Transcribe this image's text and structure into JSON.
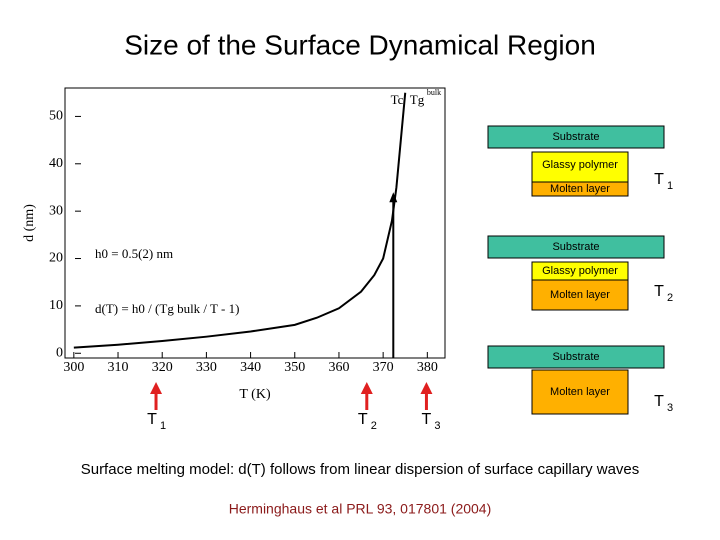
{
  "title": "Size of the Surface Dynamical Region",
  "chart_data": {
    "type": "line",
    "x": [
      300,
      310,
      320,
      330,
      340,
      350,
      355,
      360,
      365,
      368,
      370,
      372,
      373,
      374,
      375
    ],
    "values": [
      1.2,
      1.8,
      2.6,
      3.5,
      4.6,
      6,
      7.5,
      9.5,
      13,
      16.5,
      20,
      28,
      35,
      45,
      55
    ],
    "color": "#000000",
    "xlim": [
      298,
      384
    ],
    "ylim": [
      -1,
      56
    ],
    "xticks": [
      300,
      310,
      320,
      330,
      340,
      350,
      360,
      370,
      380
    ],
    "yticks": [
      0,
      10,
      20,
      30,
      40,
      50
    ],
    "xlabel": "T (K)",
    "ylabel": "d (nm)",
    "annotations": [
      "h0 = 0.5(2) nm",
      "d(T) = h0 / (Tg bulk / T - 1)"
    ],
    "arrow": {
      "x": 372.3,
      "y": 34
    },
    "arrow_labels": [
      "Tc",
      "Tg",
      "bulk"
    ]
  },
  "temperature_markers": [
    {
      "x": 318.6,
      "base": "T",
      "sub": "1"
    },
    {
      "x": 366.3,
      "base": "T",
      "sub": "2"
    },
    {
      "x": 379.8,
      "base": "T",
      "sub": "3"
    }
  ],
  "marker_color": "#e02020",
  "diagrams": [
    {
      "layers": [
        {
          "name": "Substrate",
          "color": "#40bf9f"
        },
        {
          "name": "Glassy polymer",
          "color": "#ffff00"
        },
        {
          "name": "Molten layer",
          "color": "#ffb000"
        }
      ],
      "base": "T",
      "sub": "1"
    },
    {
      "layers": [
        {
          "name": "Substrate",
          "color": "#40bf9f"
        },
        {
          "name": "Glassy polymer",
          "color": "#ffff00"
        },
        {
          "name": "Molten layer",
          "color": "#ffb000"
        }
      ],
      "base": "T",
      "sub": "2"
    },
    {
      "layers": [
        {
          "name": "Substrate",
          "color": "#40bf9f"
        },
        {
          "name": "Molten layer",
          "color": "#ffb000"
        }
      ],
      "base": "T",
      "sub": "3"
    }
  ],
  "caption": "Surface melting model:  d(T) follows from linear dispersion of surface capillary waves",
  "citation": "Herminghaus et al PRL 93, 017801 (2004)"
}
